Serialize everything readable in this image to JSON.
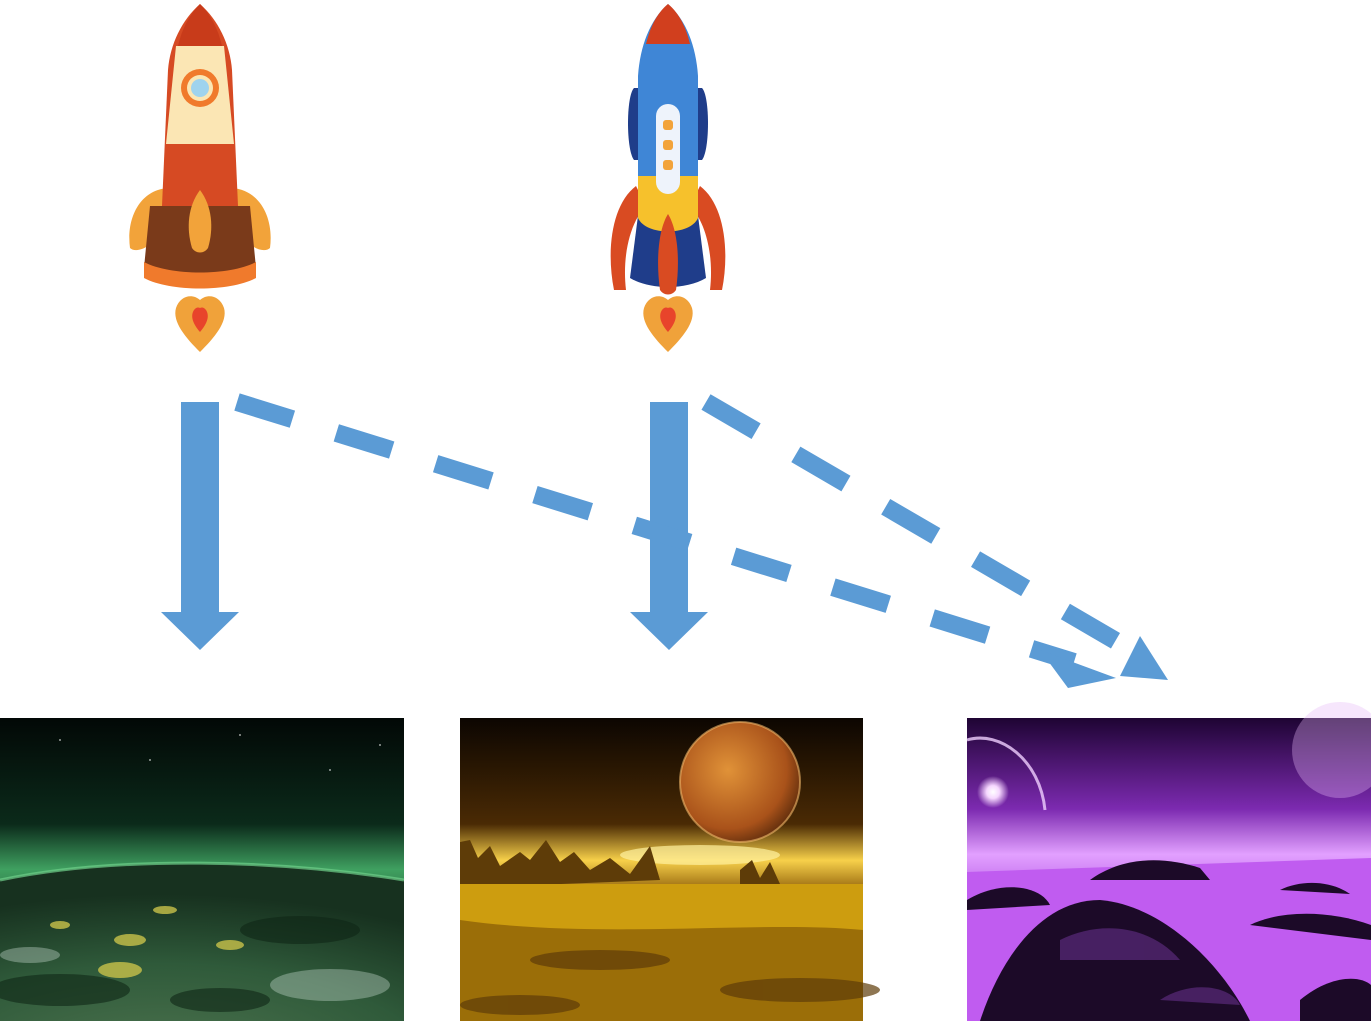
{
  "colors": {
    "arrow": "#5b9bd5",
    "background": "#ffffff"
  },
  "rockets": [
    {
      "id": "rocket-a",
      "icon": "orange-rocket-icon",
      "colors": {
        "nose": "#d13f1e",
        "band": "#fbe6b4",
        "body": "#d64a23",
        "skirt": "#7a3a1a",
        "fins": "#f2a33a",
        "flame": "#f0a23a",
        "window": "#9fd3ee"
      }
    },
    {
      "id": "rocket-b",
      "icon": "blue-rocket-icon",
      "colors": {
        "nose": "#d13f1e",
        "body": "#3f86d6",
        "bodyDark": "#1f3d8a",
        "belly": "#f6c12c",
        "fins": "#d94b22",
        "flame": "#f0a23a",
        "window": "#eef3fb"
      }
    }
  ],
  "planets": [
    {
      "id": "green-planet",
      "icon": "green-planet-landscape-icon",
      "colors": {
        "sky": "#062015",
        "glow": "#3fa060",
        "ground": "#2f5a3a",
        "light": "#b5b94a"
      }
    },
    {
      "id": "golden-planet",
      "icon": "golden-planet-landscape-icon",
      "colors": {
        "sky": "#1a0e02",
        "moon": "#c9741b",
        "ground": "#b7880a",
        "rock": "#5e3c08"
      }
    },
    {
      "id": "purple-planet",
      "icon": "purple-planet-landscape-icon",
      "colors": {
        "sky": "#3b0a5a",
        "sea": "#c05cf0",
        "rock": "#1c0a28",
        "star": "#ffffff"
      }
    }
  ],
  "connections": [
    {
      "from": "rocket-a",
      "to": "green-planet",
      "style": "solid"
    },
    {
      "from": "rocket-b",
      "to": "golden-planet",
      "style": "solid"
    },
    {
      "from": "rocket-a",
      "to": "purple-planet",
      "style": "dashed"
    },
    {
      "from": "rocket-b",
      "to": "purple-planet",
      "style": "dashed"
    }
  ]
}
